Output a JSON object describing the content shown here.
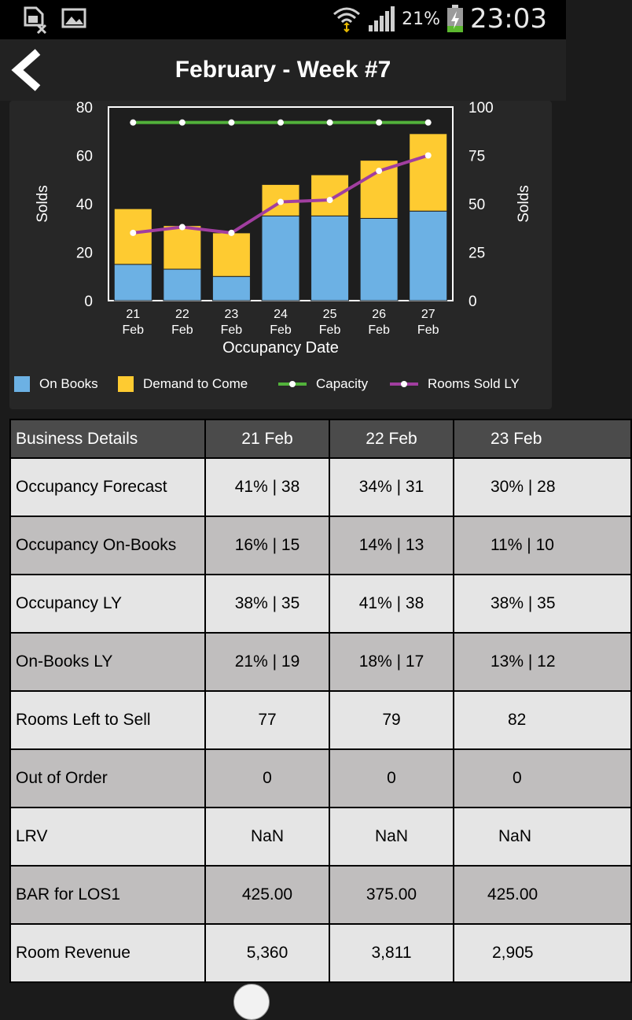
{
  "status_bar": {
    "battery_percent": "21%",
    "time": "23:03",
    "icons": [
      "sim-off-icon",
      "image-icon",
      "wifi-icon",
      "signal-icon",
      "battery-charging-icon"
    ]
  },
  "header": {
    "title": "February - Week #7",
    "back_icon": "back-chevron-icon"
  },
  "chart_data": {
    "type": "bar",
    "stacked": true,
    "categories": [
      "21\nFeb",
      "22\nFeb",
      "23\nFeb",
      "24\nFeb",
      "25\nFeb",
      "26\nFeb",
      "27\nFeb"
    ],
    "xlabel": "Occupancy Date",
    "ylabel_left": "Solds",
    "ylabel_right": "Solds",
    "ylim_left": [
      0,
      80
    ],
    "ylim_right": [
      0,
      100
    ],
    "yticks_left": [
      "0",
      "20",
      "40",
      "60",
      "80"
    ],
    "yticks_right": [
      "0",
      "25",
      "50",
      "75",
      "100"
    ],
    "grid": false,
    "legend_position": "bottom",
    "series": [
      {
        "name": "On Books",
        "kind": "bar",
        "color": "#6cb1e4",
        "values": [
          15,
          13,
          10,
          35,
          35,
          34,
          37
        ]
      },
      {
        "name": "Demand to Come",
        "kind": "bar",
        "color": "#fecb31",
        "values": [
          23,
          18,
          18,
          13,
          17,
          24,
          32
        ]
      },
      {
        "name": "Capacity",
        "kind": "line",
        "axis": "right",
        "color": "#52b23b",
        "values": [
          92,
          92,
          92,
          92,
          92,
          92,
          92
        ]
      },
      {
        "name": "Rooms Sold LY",
        "kind": "line",
        "axis": "right",
        "color": "#a13ea0",
        "values": [
          35,
          38,
          35,
          51,
          52,
          67,
          75
        ]
      }
    ]
  },
  "table": {
    "headers": [
      "Business Details",
      "21 Feb",
      "22 Feb",
      "23 Feb"
    ],
    "rows": [
      [
        "Occupancy Forecast",
        "41% | 38",
        "34% | 31",
        "30% | 28"
      ],
      [
        "Occupancy On-Books",
        "16% | 15",
        "14% | 13",
        "11% | 10"
      ],
      [
        "Occupancy LY",
        "38% | 35",
        "41% | 38",
        "38% | 35"
      ],
      [
        "On-Books LY",
        "21% | 19",
        "18% | 17",
        "13% | 12"
      ],
      [
        "Rooms Left to Sell",
        "77",
        "79",
        "82"
      ],
      [
        "Out of Order",
        "0",
        "0",
        "0"
      ],
      [
        "LRV",
        "NaN",
        "NaN",
        "NaN"
      ],
      [
        "BAR for LOS1",
        "425.00",
        "375.00",
        "425.00"
      ],
      [
        "Room Revenue",
        "5,360",
        "3,811",
        "2,905"
      ]
    ]
  }
}
